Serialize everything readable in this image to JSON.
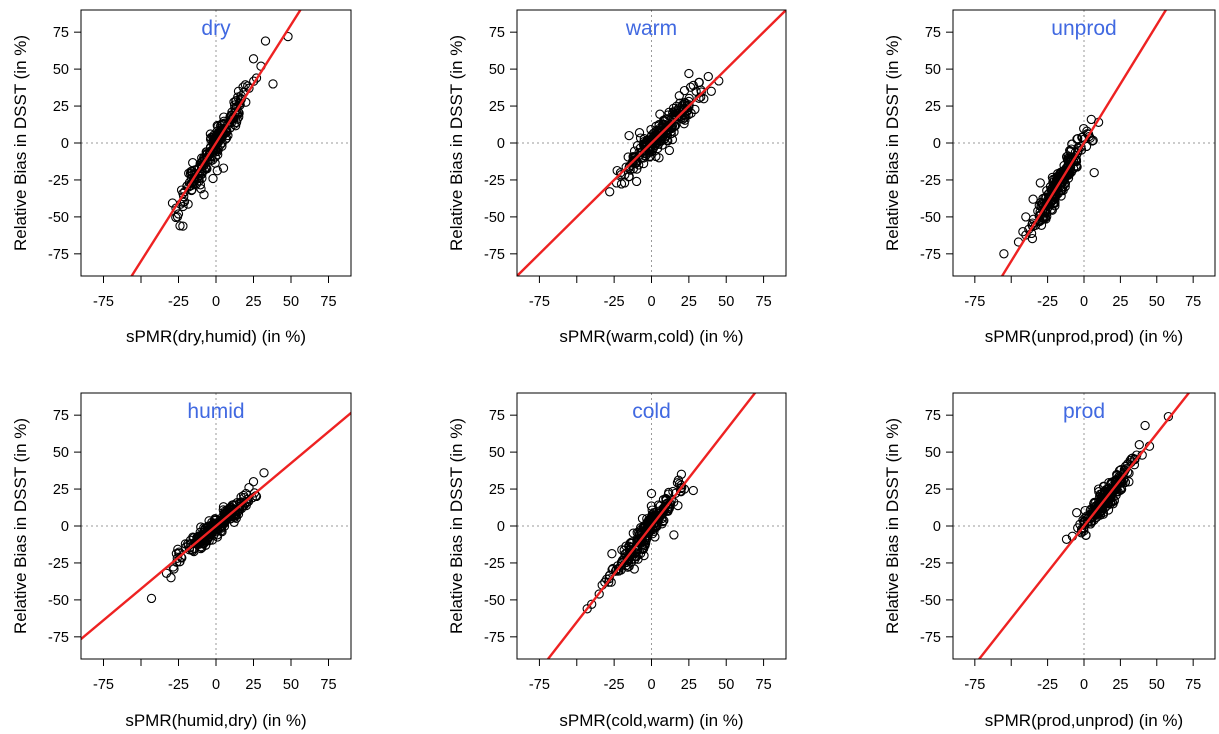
{
  "chart_data": [
    {
      "type": "scatter",
      "title": "dry",
      "xlabel": "sPMR(dry,humid)   (in %)",
      "ylabel": "Relative Bias in DSST (in %)",
      "xlim": [
        -90,
        90
      ],
      "ylim": [
        -90,
        90
      ],
      "xticks": [
        -75,
        -50,
        -25,
        0,
        25,
        50,
        75
      ],
      "xtick_labels": [
        "-75",
        "",
        "-25",
        "0",
        "25",
        "50",
        "75"
      ],
      "yticks": [
        75,
        50,
        25,
        0,
        -25,
        -50,
        -75
      ],
      "ytick_labels": [
        "75",
        "50",
        "25",
        "0",
        "-25",
        "-50",
        "-75"
      ],
      "grid": "dotted lines at x=0 and y=0",
      "fit_line": {
        "slope": 1.6,
        "intercept": 0,
        "color": "#EE2222"
      },
      "cloud": {
        "x_range": [
          -28,
          26
        ],
        "y_range": [
          -52,
          44
        ],
        "n": 220,
        "spread": 5
      },
      "points": [
        [
          -25,
          -48
        ],
        [
          -24,
          -56
        ],
        [
          -22,
          -43
        ],
        [
          33,
          69
        ],
        [
          48,
          72
        ],
        [
          38,
          40
        ],
        [
          30,
          52
        ],
        [
          25,
          57
        ],
        [
          27,
          44
        ],
        [
          22,
          37
        ],
        [
          -2,
          -24
        ],
        [
          -10,
          -31
        ],
        [
          -8,
          -35
        ],
        [
          5,
          -17
        ],
        [
          15,
          35
        ]
      ],
      "panel_position": "top-left"
    },
    {
      "type": "scatter",
      "title": "warm",
      "xlabel": "sPMR(warm,cold)   (in %)",
      "ylabel": "Relative Bias in DSST (in %)",
      "xlim": [
        -90,
        90
      ],
      "ylim": [
        -90,
        90
      ],
      "xticks": [
        -75,
        -50,
        -25,
        0,
        25,
        50,
        75
      ],
      "xtick_labels": [
        "-75",
        "",
        "-25",
        "0",
        "25",
        "50",
        "75"
      ],
      "yticks": [
        75,
        50,
        25,
        0,
        -25,
        -50,
        -75
      ],
      "ytick_labels": [
        "75",
        "50",
        "25",
        "0",
        "-25",
        "-50",
        "-75"
      ],
      "grid": "dotted lines at x=0 and y=0",
      "fit_line": {
        "slope": 1.0,
        "intercept": 0,
        "color": "#EE2222"
      },
      "cloud": {
        "x_range": [
          -22,
          32
        ],
        "y_range": [
          -23,
          35
        ],
        "n": 240,
        "spread": 5
      },
      "points": [
        [
          -28,
          -33
        ],
        [
          -18,
          -27
        ],
        [
          -10,
          -26
        ],
        [
          -15,
          5
        ],
        [
          25,
          47
        ],
        [
          38,
          45
        ],
        [
          45,
          42
        ],
        [
          32,
          41
        ],
        [
          35,
          30
        ],
        [
          40,
          35
        ],
        [
          5,
          -10
        ],
        [
          12,
          -5
        ],
        [
          -8,
          7
        ],
        [
          28,
          39
        ]
      ],
      "panel_position": "top-center"
    },
    {
      "type": "scatter",
      "title": "unprod",
      "xlabel": "sPMR(unprod,prod)   (in %)",
      "ylabel": "Relative Bias in DSST (in %)",
      "xlim": [
        -90,
        90
      ],
      "ylim": [
        -90,
        90
      ],
      "xticks": [
        -75,
        -50,
        -25,
        0,
        25,
        50,
        75
      ],
      "xtick_labels": [
        "-75",
        "",
        "-25",
        "0",
        "25",
        "50",
        "75"
      ],
      "yticks": [
        75,
        50,
        25,
        0,
        -25,
        -50,
        -75
      ],
      "ytick_labels": [
        "75",
        "50",
        "25",
        "0",
        "-25",
        "-50",
        "-75"
      ],
      "grid": "dotted lines at x=0 and y=0",
      "fit_line": {
        "slope": 1.6,
        "intercept": 0,
        "color": "#EE2222"
      },
      "cloud": {
        "x_range": [
          -40,
          5
        ],
        "y_range": [
          -60,
          8
        ],
        "n": 240,
        "spread": 5
      },
      "points": [
        [
          -55,
          -75
        ],
        [
          -45,
          -67
        ],
        [
          -42,
          -60
        ],
        [
          -40,
          -50
        ],
        [
          10,
          14
        ],
        [
          5,
          16
        ],
        [
          7,
          -20
        ],
        [
          2,
          8
        ],
        [
          -5,
          -16
        ],
        [
          -30,
          -27
        ],
        [
          -20,
          -40
        ],
        [
          -35,
          -38
        ]
      ],
      "panel_position": "top-right"
    },
    {
      "type": "scatter",
      "title": "humid",
      "xlabel": "sPMR(humid,dry)   (in %)",
      "ylabel": "Relative Bias in DSST (in %)",
      "xlim": [
        -90,
        90
      ],
      "ylim": [
        -90,
        90
      ],
      "xticks": [
        -75,
        -50,
        -25,
        0,
        25,
        50,
        75
      ],
      "xtick_labels": [
        "-75",
        "",
        "-25",
        "0",
        "25",
        "50",
        "75"
      ],
      "yticks": [
        75,
        50,
        25,
        0,
        -25,
        -50,
        -75
      ],
      "ytick_labels": [
        "75",
        "50",
        "25",
        "0",
        "-25",
        "-50",
        "-75"
      ],
      "grid": "dotted lines at x=0 and y=0",
      "fit_line": {
        "slope": 0.85,
        "intercept": 0,
        "color": "#EE2222"
      },
      "cloud": {
        "x_range": [
          -28,
          26
        ],
        "y_range": [
          -24,
          24
        ],
        "n": 240,
        "spread": 3
      },
      "points": [
        [
          -43,
          -49
        ],
        [
          -33,
          -32
        ],
        [
          -30,
          -35
        ],
        [
          -28,
          -29
        ],
        [
          32,
          36
        ],
        [
          25,
          30
        ],
        [
          27,
          20
        ],
        [
          22,
          26
        ],
        [
          20,
          22
        ],
        [
          -10,
          -14
        ],
        [
          15,
          8
        ],
        [
          5,
          13
        ]
      ],
      "panel_position": "bottom-left"
    },
    {
      "type": "scatter",
      "title": "cold",
      "xlabel": "sPMR(cold,warm)   (in %)",
      "ylabel": "Relative Bias in DSST (in %)",
      "xlim": [
        -90,
        90
      ],
      "ylim": [
        -90,
        90
      ],
      "xticks": [
        -75,
        -50,
        -25,
        0,
        25,
        50,
        75
      ],
      "xtick_labels": [
        "-75",
        "",
        "-25",
        "0",
        "25",
        "50",
        "75"
      ],
      "yticks": [
        75,
        50,
        25,
        0,
        -25,
        -50,
        -75
      ],
      "ytick_labels": [
        "75",
        "50",
        "25",
        "0",
        "-25",
        "-50",
        "-75"
      ],
      "grid": "dotted lines at x=0 and y=0",
      "fit_line": {
        "slope": 1.3,
        "intercept": 0,
        "color": "#EE2222"
      },
      "cloud": {
        "x_range": [
          -28,
          20
        ],
        "y_range": [
          -32,
          26
        ],
        "n": 240,
        "spread": 5
      },
      "points": [
        [
          -43,
          -56
        ],
        [
          -40,
          -53
        ],
        [
          -35,
          -46
        ],
        [
          -33,
          -40
        ],
        [
          -30,
          -36
        ],
        [
          20,
          35
        ],
        [
          18,
          31
        ],
        [
          28,
          24
        ],
        [
          22,
          25
        ],
        [
          15,
          -6
        ],
        [
          10,
          18
        ],
        [
          0,
          22
        ],
        [
          -5,
          -20
        ],
        [
          5,
          10
        ]
      ],
      "panel_position": "bottom-center"
    },
    {
      "type": "scatter",
      "title": "prod",
      "xlabel": "sPMR(prod,unprod)   (in %)",
      "ylabel": "Relative Bias in DSST (in %)",
      "xlim": [
        -90,
        90
      ],
      "ylim": [
        -90,
        90
      ],
      "xticks": [
        -75,
        -50,
        -25,
        0,
        25,
        50,
        75
      ],
      "xtick_labels": [
        "-75",
        "",
        "-25",
        "0",
        "25",
        "50",
        "75"
      ],
      "yticks": [
        75,
        50,
        25,
        0,
        -25,
        -50,
        -75
      ],
      "ytick_labels": [
        "75",
        "50",
        "25",
        "0",
        "-25",
        "-50",
        "-75"
      ],
      "grid": "dotted lines at x=0 and y=0",
      "fit_line": {
        "slope": 1.25,
        "intercept": 0,
        "color": "#EE2222"
      },
      "cloud": {
        "x_range": [
          -5,
          35
        ],
        "y_range": [
          -4,
          42
        ],
        "n": 230,
        "spread": 4
      },
      "points": [
        [
          -12,
          -9
        ],
        [
          -8,
          -7
        ],
        [
          -5,
          9
        ],
        [
          42,
          68
        ],
        [
          58,
          74
        ],
        [
          45,
          54
        ],
        [
          38,
          55
        ],
        [
          40,
          48
        ],
        [
          35,
          45
        ],
        [
          30,
          42
        ],
        [
          10,
          25
        ],
        [
          0,
          3
        ],
        [
          20,
          15
        ]
      ],
      "panel_position": "bottom-right"
    }
  ]
}
